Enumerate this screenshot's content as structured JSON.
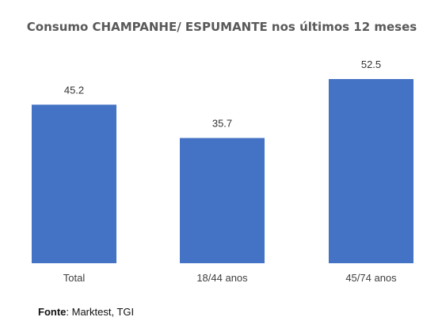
{
  "chart_data": {
    "type": "bar",
    "title": "Consumo CHAMPANHE/ ESPUMANTE nos últimos 12 meses",
    "categories": [
      "Total",
      "18/44 anos",
      "45/74 anos"
    ],
    "values": [
      45.2,
      35.7,
      52.5
    ],
    "value_labels": [
      "45.2",
      "35.7",
      "52.5"
    ],
    "bar_color": "#4472C4",
    "ylim": [
      0,
      52.5
    ],
    "grid": false,
    "legend": "none"
  },
  "footer": {
    "source_label": "Fonte",
    "source_text": ": Marktest, TGI"
  }
}
